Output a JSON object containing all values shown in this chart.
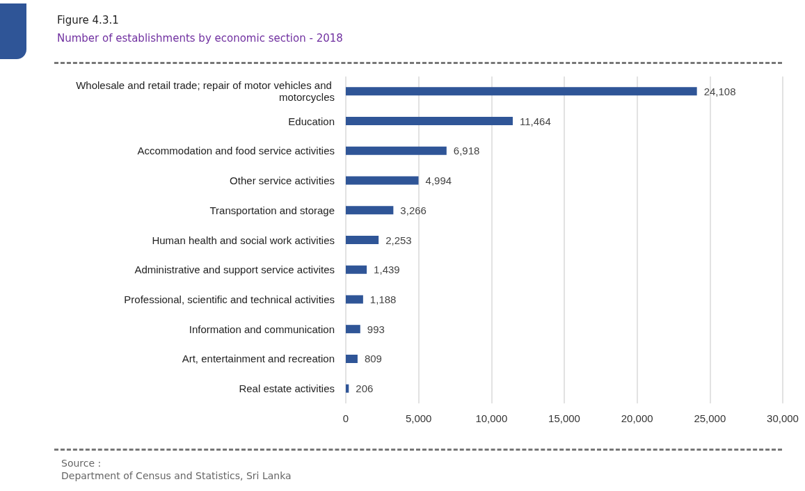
{
  "chart_data": {
    "type": "bar",
    "orientation": "horizontal",
    "title": "Figure 4.3.1",
    "subtitle": "Number of establishments by economic section -  2018",
    "categories": [
      "Wholesale and retail trade; repair of motor vehicles and motorcycles",
      "Education",
      "Accommodation and food service activities",
      "Other service activities",
      "Transportation and storage",
      "Human health and social work activities",
      "Administrative and support service activites",
      "Professional, scientific and technical activities",
      "Information and communication",
      "Art, entertainment and recreation",
      "Real estate activities"
    ],
    "values": [
      24108,
      11464,
      6918,
      4994,
      3266,
      2253,
      1439,
      1188,
      993,
      809,
      206
    ],
    "color": "#2f5597",
    "value_labels": [
      "24,108",
      "11,464",
      "6,918",
      "4,994",
      "3,266",
      "2,253",
      "1,439",
      "1,188",
      "993",
      "809",
      "206"
    ],
    "xlim": [
      0,
      30000
    ],
    "xticks": [
      0,
      {
        "value": 5000,
        "label": "5,000"
      },
      {
        "value": 10000,
        "label": "10,000"
      },
      {
        "value": 15000,
        "label": "15,000"
      },
      {
        "value": 20000,
        "label": "20,000"
      },
      {
        "value": 25000,
        "label": "25,000"
      },
      {
        "value": 30000,
        "label": "30,000"
      }
    ],
    "grid": "x",
    "annotations": [
      "Source :",
      "Department of Census and Statistics, Sri Lanka"
    ]
  }
}
